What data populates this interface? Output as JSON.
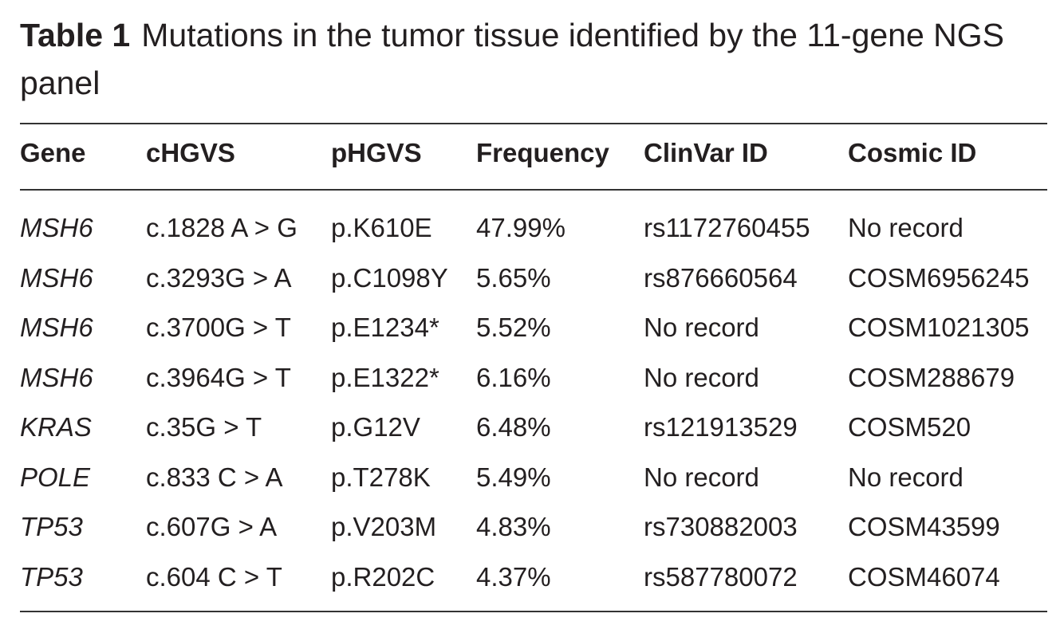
{
  "caption": {
    "label": "Table 1",
    "title": "Mutations in the tumor tissue identified by the 11-gene NGS panel"
  },
  "table": {
    "columns": [
      "Gene",
      "cHGVS",
      "pHGVS",
      "Frequency",
      "ClinVar ID",
      "Cosmic ID"
    ],
    "rows": [
      [
        "MSH6",
        "c.1828 A > G",
        "p.K610E",
        "47.99%",
        "rs1172760455",
        "No record"
      ],
      [
        "MSH6",
        "c.3293G > A",
        "p.C1098Y",
        "5.65%",
        "rs876660564",
        "COSM6956245"
      ],
      [
        "MSH6",
        "c.3700G > T",
        "p.E1234*",
        "5.52%",
        "No record",
        "COSM1021305"
      ],
      [
        "MSH6",
        "c.3964G > T",
        "p.E1322*",
        "6.16%",
        "No record",
        "COSM288679"
      ],
      [
        "KRAS",
        "c.35G > T",
        "p.G12V",
        "6.48%",
        "rs121913529",
        "COSM520"
      ],
      [
        "POLE",
        "c.833 C > A",
        "p.T278K",
        "5.49%",
        "No record",
        "No record"
      ],
      [
        "TP53",
        "c.607G > A",
        "p.V203M",
        "4.83%",
        "rs730882003",
        "COSM43599"
      ],
      [
        "TP53",
        "c.604 C > T",
        "p.R202C",
        "4.37%",
        "rs587780072",
        "COSM46074"
      ]
    ]
  }
}
